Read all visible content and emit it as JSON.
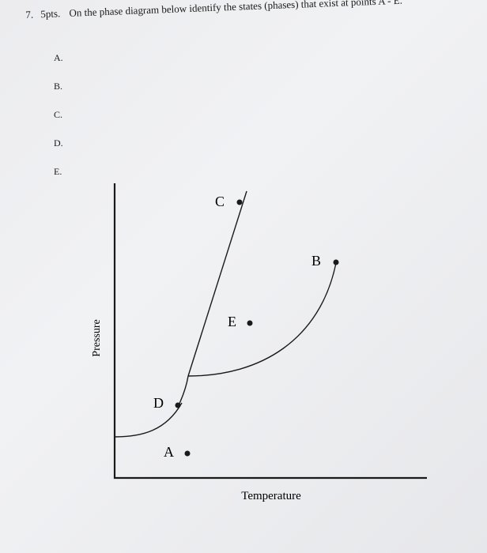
{
  "question": {
    "number": "7.",
    "points": "5pts.",
    "text": "On the phase diagram below identify the states (phases) that exist at points A - E."
  },
  "answer_labels": [
    "A.",
    "B.",
    "C.",
    "D.",
    "E."
  ],
  "diagram": {
    "xlabel": "Temperature",
    "ylabel": "Pressure",
    "points": [
      {
        "label": "A"
      },
      {
        "label": "B"
      },
      {
        "label": "C"
      },
      {
        "label": "D"
      },
      {
        "label": "E"
      }
    ],
    "colors": {
      "ink": "#1a1a1a",
      "paper": "#ececef"
    }
  }
}
